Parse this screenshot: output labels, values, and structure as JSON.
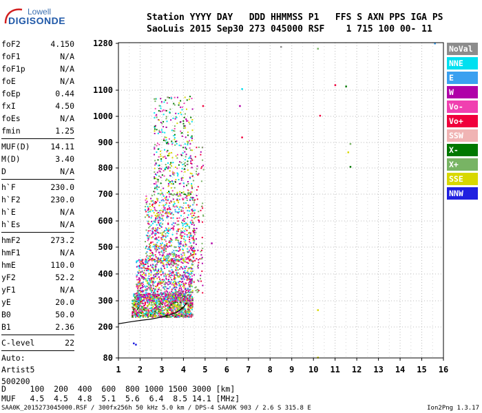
{
  "logo": {
    "top": "Lowell",
    "main": "DIGISONDE"
  },
  "header": {
    "line1": "Station YYYY DAY   DDD HHMMSS P1   FFS S AXN PPS IGA PS",
    "line2": "SaoLuis 2015 Sep30 273 045000 RSF    1 715 100 00- 11"
  },
  "params": {
    "group1": [
      {
        "label": "foF2",
        "value": "4.150"
      },
      {
        "label": "foF1",
        "value": "N/A"
      },
      {
        "label": "foF1p",
        "value": "N/A"
      },
      {
        "label": "foE",
        "value": "N/A"
      },
      {
        "label": "foEp",
        "value": "0.44"
      },
      {
        "label": "fxI",
        "value": "4.50"
      },
      {
        "label": "foEs",
        "value": "N/A"
      },
      {
        "label": "fmin",
        "value": "1.25"
      }
    ],
    "group2": [
      {
        "label": "MUF(D)",
        "value": "14.11"
      },
      {
        "label": "M(D)",
        "value": "3.40"
      },
      {
        "label": "D",
        "value": "N/A"
      }
    ],
    "group3": [
      {
        "label": "h`F",
        "value": "230.0"
      },
      {
        "label": "h`F2",
        "value": "230.0"
      },
      {
        "label": "h`E",
        "value": "N/A"
      },
      {
        "label": "h`Es",
        "value": "N/A"
      }
    ],
    "group4": [
      {
        "label": "hmF2",
        "value": "273.2"
      },
      {
        "label": "hmF1",
        "value": "N/A"
      },
      {
        "label": "hmE",
        "value": "110.0"
      },
      {
        "label": "yF2",
        "value": "52.2"
      },
      {
        "label": "yF1",
        "value": "N/A"
      },
      {
        "label": "yE",
        "value": "20.0"
      },
      {
        "label": "B0",
        "value": "50.0"
      },
      {
        "label": "B1",
        "value": "2.36"
      }
    ],
    "group5": [
      {
        "label": "C-level",
        "value": "22"
      }
    ],
    "auto": [
      "Auto:",
      "Artist5",
      "500200"
    ]
  },
  "legend": [
    {
      "label": "NoVal",
      "color": "#8c8c8c"
    },
    {
      "label": "NNE",
      "color": "#00e0f0"
    },
    {
      "label": "E",
      "color": "#3aa0f0"
    },
    {
      "label": "W",
      "color": "#b000a8"
    },
    {
      "label": "Vo-",
      "color": "#f040b0"
    },
    {
      "label": "Vo+",
      "color": "#f0003c"
    },
    {
      "label": "SSW",
      "color": "#f0b4b4"
    },
    {
      "label": "X-",
      "color": "#007800"
    },
    {
      "label": "X+",
      "color": "#78b464"
    },
    {
      "label": "SSE",
      "color": "#d8d800"
    },
    {
      "label": "NNW",
      "color": "#2020e0"
    }
  ],
  "bottom": {
    "line1": "D     100  200  400  600  800 1000 1500 3000 [km]",
    "line2": "MUF   4.5  4.5  4.8  5.1  5.6  6.4  8.5 14.1 [MHz]"
  },
  "footer": {
    "left": "SAA0K_2015273045000.RSF / 300fx256h 50 kHz 5.0 km / DPS-4 SAA0K 903 / 2.6 S 315.8 E",
    "right": "Ion2Png 1.3.17"
  },
  "chart_data": {
    "type": "scatter",
    "xlim": [
      1,
      16
    ],
    "x_ticks": [
      1,
      2,
      3,
      4,
      5,
      6,
      7,
      8,
      9,
      10,
      11,
      12,
      13,
      14,
      15,
      16
    ],
    "x_tick_labels": [
      "1",
      "2",
      "3",
      "4",
      "5",
      "6",
      "7",
      "8",
      "9",
      "10",
      "11",
      "12",
      "13",
      "14",
      "15",
      "16"
    ],
    "y_ticks": [
      80,
      200,
      300,
      400,
      500,
      600,
      700,
      800,
      900,
      1000,
      1100,
      1280
    ],
    "y_tick_labels": [
      "80",
      "200",
      "300",
      "400",
      "500",
      "600",
      "700",
      "800",
      "900",
      "1000",
      "1100",
      "1280"
    ],
    "grid": true,
    "legend_placement": "right",
    "trace_curve": {
      "x": [
        1.0,
        1.5,
        2.0,
        2.5,
        3.0,
        3.5,
        3.8,
        4.0,
        4.15
      ],
      "y": [
        212,
        219,
        225,
        230,
        238,
        250,
        262,
        275,
        292
      ]
    },
    "sporadic_points": [
      {
        "x": 8.5,
        "y": 1267,
        "c": "NoVal"
      },
      {
        "x": 10.2,
        "y": 1260,
        "c": "X+"
      },
      {
        "x": 15.6,
        "y": 1280,
        "c": "E"
      },
      {
        "x": 6.7,
        "y": 1105,
        "c": "NNE"
      },
      {
        "x": 11.0,
        "y": 1120,
        "c": "Vo+"
      },
      {
        "x": 11.5,
        "y": 1115,
        "c": "X-"
      },
      {
        "x": 6.6,
        "y": 1040,
        "c": "W"
      },
      {
        "x": 10.3,
        "y": 1003,
        "c": "Vo+"
      },
      {
        "x": 6.7,
        "y": 920,
        "c": "Vo+"
      },
      {
        "x": 11.7,
        "y": 895,
        "c": "X+"
      },
      {
        "x": 11.7,
        "y": 805,
        "c": "X-"
      },
      {
        "x": 11.6,
        "y": 862,
        "c": "SSE"
      },
      {
        "x": 10.2,
        "y": 265,
        "c": "SSE"
      },
      {
        "x": 10.2,
        "y": 82,
        "c": "SSE"
      },
      {
        "x": 1.7,
        "y": 137,
        "c": "NNW"
      },
      {
        "x": 1.8,
        "y": 132,
        "c": "NNW"
      },
      {
        "x": 5.3,
        "y": 515,
        "c": "W"
      },
      {
        "x": 4.9,
        "y": 1040,
        "c": "Vo+"
      }
    ]
  }
}
